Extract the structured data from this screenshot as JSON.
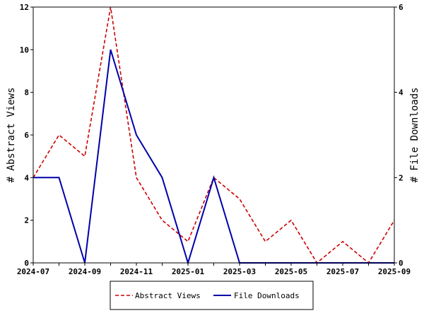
{
  "chart_data": {
    "type": "line",
    "xlabel": "",
    "ylabel_left": "# Abstract Views",
    "ylabel_right": "# File Downloads",
    "x": [
      "2024-07",
      "2024-08",
      "2024-09",
      "2024-10",
      "2024-11",
      "2024-12",
      "2025-01",
      "2025-02",
      "2025-03",
      "2025-04",
      "2025-05",
      "2025-06",
      "2025-07",
      "2025-08",
      "2025-09"
    ],
    "x_tick_labels": [
      "2024-07",
      "2024-09",
      "2024-11",
      "2025-01",
      "2025-03",
      "2025-05",
      "2025-07",
      "2025-09"
    ],
    "ylim_left": [
      0,
      12
    ],
    "ylim_right": [
      0,
      6
    ],
    "yticks_left": [
      0,
      2,
      4,
      6,
      8,
      10,
      12
    ],
    "yticks_right": [
      0,
      2,
      4,
      6
    ],
    "grid": false,
    "legend_position": "bottom",
    "series": [
      {
        "name": "Abstract Views",
        "axis": "left",
        "color": "#cc0000",
        "style": "dashed",
        "values": [
          4,
          6,
          5,
          12,
          4,
          2,
          1,
          4,
          3,
          1,
          2,
          0,
          1,
          0,
          2
        ]
      },
      {
        "name": "File Downloads",
        "axis": "right",
        "color": "#0000aa",
        "style": "solid",
        "values": [
          2,
          2,
          0,
          5,
          3,
          2,
          0,
          2,
          0,
          0,
          0,
          0,
          0,
          0,
          0
        ]
      }
    ]
  }
}
